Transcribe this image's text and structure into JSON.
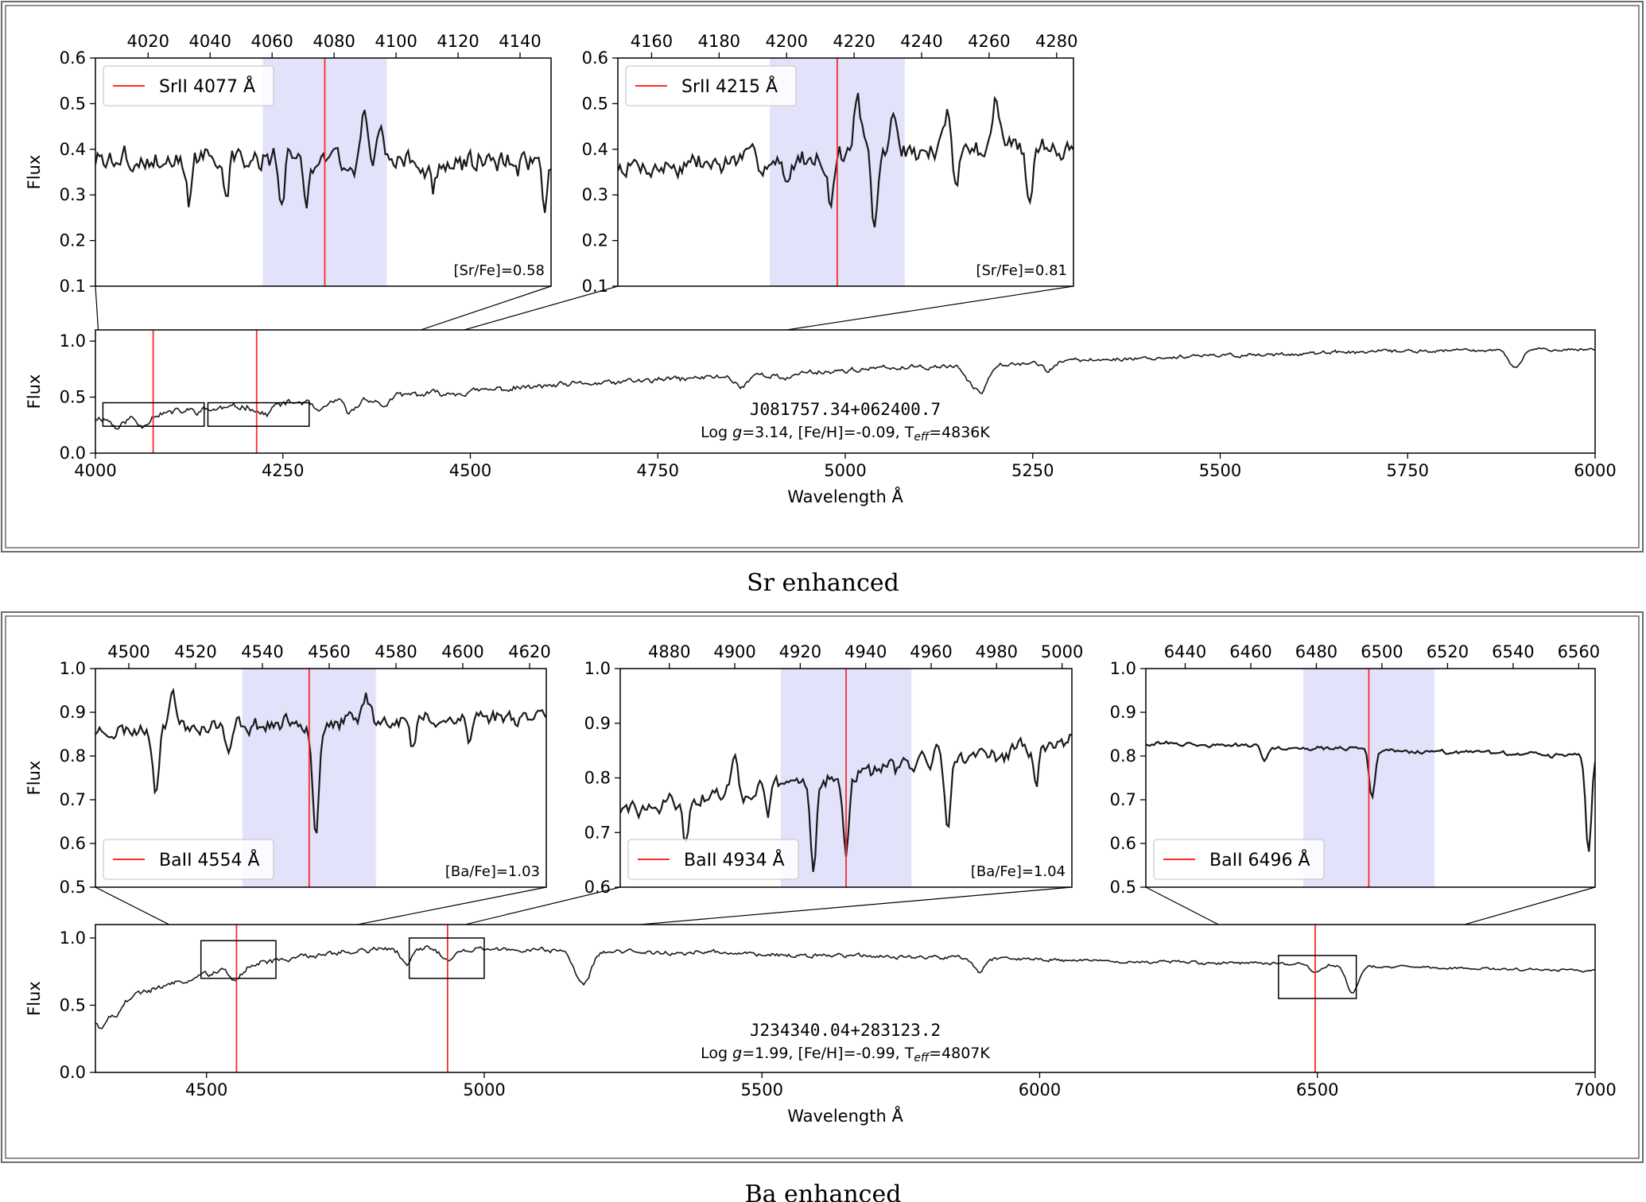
{
  "figure": {
    "captions": [
      "Sr enhanced",
      "Ba enhanced"
    ]
  },
  "colors": {
    "line_marker": "#ff2a2a",
    "highlight_band": "#e2e2fb",
    "spectrum": "#1a1a1a"
  },
  "chart_data": [
    {
      "id": "sr_main",
      "type": "line",
      "panel": "Sr enhanced",
      "xlabel": "Wavelength Å",
      "ylabel": "Flux",
      "xlim": [
        4000,
        6000
      ],
      "ylim": [
        0.0,
        1.1
      ],
      "xticks": [
        4000,
        4250,
        4500,
        4750,
        5000,
        5250,
        5500,
        5750,
        6000
      ],
      "yticks": [
        0.0,
        0.5,
        1.0
      ],
      "star_name": "J081757.34+062400.7",
      "params_prefix": "Log ",
      "params_g": "g",
      "params_mid": "=3.14, [Fe/H]=-0.09, T",
      "params_sub": "eff",
      "params_suffix": "=4836K",
      "markers": [
        4077,
        4215
      ],
      "zoom_boxes": [
        [
          4010,
          4145,
          0.24,
          0.45
        ],
        [
          4150,
          4285,
          0.24,
          0.45
        ]
      ],
      "spectrum": {
        "x0": 4000,
        "x1": 6000,
        "start": 0.32,
        "end": 0.93,
        "bend": 5500,
        "noise": 0.05,
        "seed": 11,
        "dips": [
          [
            4030,
            0.1
          ],
          [
            4062,
            0.1
          ],
          [
            4226,
            0.08
          ],
          [
            4300,
            0.1
          ],
          [
            4340,
            0.12
          ],
          [
            4383,
            0.08
          ],
          [
            4861,
            0.1
          ],
          [
            4920,
            0.06
          ],
          [
            5167,
            0.16
          ],
          [
            5183,
            0.22
          ],
          [
            5270,
            0.08
          ],
          [
            5890,
            0.1
          ],
          [
            5896,
            0.08
          ]
        ]
      }
    },
    {
      "id": "sr_4077",
      "type": "line",
      "ylabel": "Flux",
      "xlim": [
        4003,
        4150
      ],
      "ylim": [
        0.1,
        0.6
      ],
      "xticks": [
        4020,
        4040,
        4060,
        4080,
        4100,
        4120,
        4140
      ],
      "yticks": [
        0.1,
        0.2,
        0.3,
        0.4,
        0.5,
        0.6
      ],
      "legend": "SrII 4077 Å",
      "legend_position": "top-left",
      "abundance": "[Sr/Fe]=0.58",
      "marker": 4077,
      "band": [
        4057,
        4097
      ],
      "spectrum": {
        "x0": 4003,
        "x1": 4150,
        "start": 0.38,
        "end": 0.38,
        "noise": 0.045,
        "seed": 3,
        "dips": [
          [
            4033,
            0.09
          ],
          [
            4045,
            0.06
          ],
          [
            4063,
            0.14
          ],
          [
            4071,
            0.1
          ],
          [
            4112,
            0.07
          ],
          [
            4148,
            0.12
          ]
        ],
        "peaks": [
          [
            4090,
            0.08
          ],
          [
            4095,
            0.07
          ]
        ]
      }
    },
    {
      "id": "sr_4215",
      "type": "line",
      "xlim": [
        4150,
        4285
      ],
      "ylim": [
        0.1,
        0.6
      ],
      "xticks": [
        4160,
        4180,
        4200,
        4220,
        4240,
        4260,
        4280
      ],
      "yticks": [
        0.1,
        0.2,
        0.3,
        0.4,
        0.5,
        0.6
      ],
      "legend": "SrII 4215 Å",
      "legend_position": "top-left",
      "abundance": "[Sr/Fe]=0.81",
      "marker": 4215,
      "band": [
        4195,
        4235
      ],
      "spectrum": {
        "x0": 4150,
        "x1": 4285,
        "start": 0.36,
        "end": 0.42,
        "noise": 0.04,
        "seed": 7,
        "dips": [
          [
            4200,
            0.06
          ],
          [
            4213,
            0.1
          ],
          [
            4226,
            0.18
          ],
          [
            4250,
            0.07
          ],
          [
            4272,
            0.14
          ]
        ],
        "peaks": [
          [
            4221,
            0.12
          ],
          [
            4232,
            0.08
          ],
          [
            4262,
            0.1
          ],
          [
            4248,
            0.08
          ]
        ]
      }
    },
    {
      "id": "ba_main",
      "type": "line",
      "panel": "Ba enhanced",
      "xlabel": "Wavelength Å",
      "ylabel": "Flux",
      "xlim": [
        4300,
        7000
      ],
      "ylim": [
        0.0,
        1.1
      ],
      "xticks": [
        4500,
        5000,
        5500,
        6000,
        6500,
        7000
      ],
      "yticks": [
        0.0,
        0.5,
        1.0
      ],
      "star_name": "J234340.04+283123.2",
      "params_prefix": "Log ",
      "params_g": "g",
      "params_mid": "=1.99, [Fe/H]=-0.99, T",
      "params_sub": "eff",
      "params_suffix": "=4807K",
      "markers": [
        4554,
        4934,
        6496
      ],
      "zoom_boxes": [
        [
          4490,
          4625,
          0.7,
          0.98
        ],
        [
          4865,
          5000,
          0.7,
          1.0
        ],
        [
          6430,
          6570,
          0.55,
          0.87
        ]
      ],
      "spectrum": {
        "x0": 4300,
        "x1": 7000,
        "start": 0.48,
        "end": 0.76,
        "peak": 0.93,
        "peakAt": 4900,
        "noise": 0.035,
        "seed": 19,
        "dips": [
          [
            4310,
            0.15
          ],
          [
            4340,
            0.1
          ],
          [
            4554,
            0.08
          ],
          [
            4861,
            0.12
          ],
          [
            4934,
            0.08
          ],
          [
            5167,
            0.12
          ],
          [
            5183,
            0.2
          ],
          [
            5890,
            0.1
          ],
          [
            6496,
            0.05
          ],
          [
            6563,
            0.2
          ]
        ]
      }
    },
    {
      "id": "ba_4554",
      "type": "line",
      "ylabel": "Flux",
      "xlim": [
        4490,
        4625
      ],
      "ylim": [
        0.5,
        1.0
      ],
      "xticks": [
        4500,
        4520,
        4540,
        4560,
        4580,
        4600,
        4620
      ],
      "yticks": [
        0.5,
        0.6,
        0.7,
        0.8,
        0.9,
        1.0
      ],
      "legend": "BaII 4554 Å",
      "legend_position": "bottom-left",
      "abundance": "[Ba/Fe]=1.03",
      "marker": 4554,
      "band": [
        4534,
        4574
      ],
      "spectrum": {
        "x0": 4490,
        "x1": 4625,
        "start": 0.86,
        "end": 0.9,
        "noise": 0.03,
        "seed": 23,
        "dips": [
          [
            4508,
            0.13
          ],
          [
            4530,
            0.08
          ],
          [
            4556,
            0.25
          ],
          [
            4585,
            0.08
          ],
          [
            4602,
            0.06
          ]
        ],
        "peaks": [
          [
            4513,
            0.08
          ],
          [
            4571,
            0.06
          ]
        ]
      }
    },
    {
      "id": "ba_4934",
      "type": "line",
      "xlim": [
        4865,
        5003
      ],
      "ylim": [
        0.6,
        1.0
      ],
      "xticks": [
        4880,
        4900,
        4920,
        4940,
        4960,
        4980,
        5000
      ],
      "yticks": [
        0.6,
        0.7,
        0.8,
        0.9,
        1.0
      ],
      "legend": "BaII 4934 Å",
      "legend_position": "bottom-left",
      "abundance": "[Ba/Fe]=1.04",
      "marker": 4934,
      "band": [
        4914,
        4954
      ],
      "spectrum": {
        "x0": 4865,
        "x1": 5003,
        "start": 0.74,
        "end": 0.87,
        "noise": 0.025,
        "seed": 29,
        "dips": [
          [
            4885,
            0.08
          ],
          [
            4910,
            0.06
          ],
          [
            4924,
            0.15
          ],
          [
            4934,
            0.16
          ],
          [
            4965,
            0.12
          ],
          [
            4992,
            0.08
          ]
        ],
        "peaks": [
          [
            4900,
            0.07
          ],
          [
            4957,
            0.04
          ],
          [
            4962,
            0.05
          ]
        ]
      }
    },
    {
      "id": "ba_6496",
      "type": "line",
      "xlim": [
        6428,
        6565
      ],
      "ylim": [
        0.5,
        1.0
      ],
      "xticks": [
        6440,
        6460,
        6480,
        6500,
        6520,
        6540,
        6560
      ],
      "yticks": [
        0.5,
        0.6,
        0.7,
        0.8,
        0.9,
        1.0
      ],
      "legend": "BaII 6496 Å",
      "legend_position": "bottom-left",
      "marker": 6496,
      "band": [
        6476,
        6516
      ],
      "spectrum": {
        "x0": 6428,
        "x1": 6565,
        "start": 0.83,
        "end": 0.8,
        "noise": 0.008,
        "seed": 31,
        "dips": [
          [
            6497,
            0.11
          ],
          [
            6563,
            0.22
          ],
          [
            6464,
            0.03
          ]
        ]
      }
    }
  ]
}
